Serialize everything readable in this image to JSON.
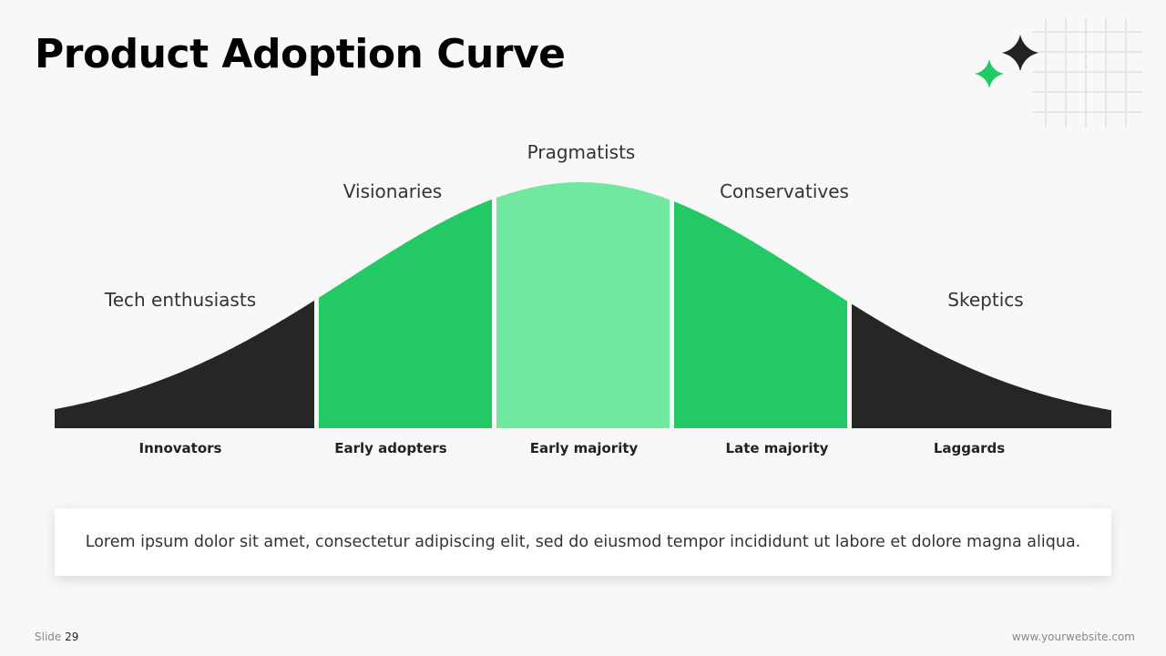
{
  "title": "Product Adoption Curve",
  "segments": [
    {
      "persona": "Tech enthusiasts",
      "group": "Innovators"
    },
    {
      "persona": "Visionaries",
      "group": "Early adopters"
    },
    {
      "persona": "Pragmatists",
      "group": "Early majority"
    },
    {
      "persona": "Conservatives",
      "group": "Late majority"
    },
    {
      "persona": "Skeptics",
      "group": "Laggards"
    }
  ],
  "caption": "Lorem ipsum dolor sit amet, consectetur adipiscing elit, sed do eiusmod tempor incididunt ut labore et dolore magna aliqua.",
  "footer": {
    "slide_word": "Slide",
    "slide_number": "29",
    "website": "www.yourwebsite.com"
  }
}
